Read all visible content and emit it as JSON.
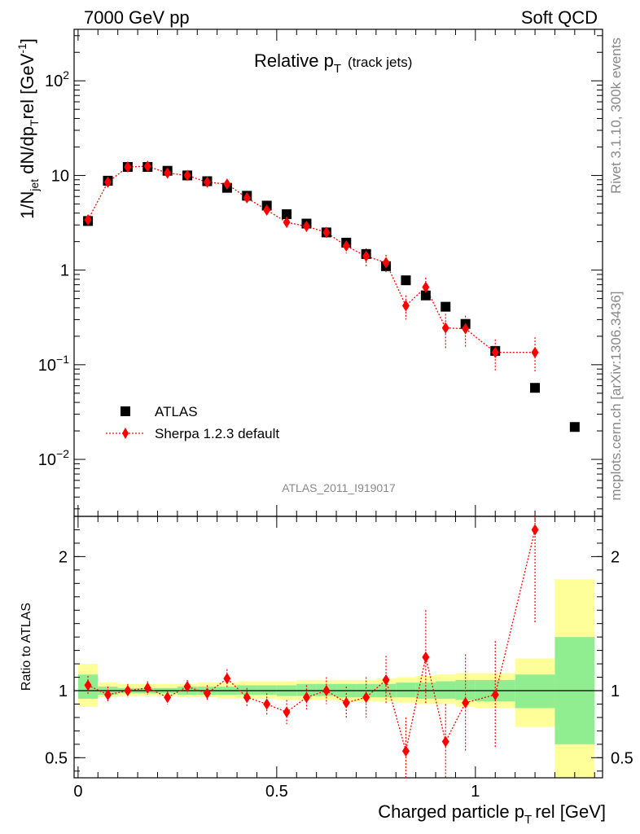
{
  "header": {
    "left": "7000 GeV pp",
    "right": "Soft QCD"
  },
  "side": {
    "rivet": "Rivet 3.1.10,  300k events",
    "mcplots": "mcplots.cern.ch [arXiv:1306.3436]"
  },
  "chart_data": [
    {
      "type": "scatter",
      "title": "Relative p",
      "title_sub": "T",
      "title_extra": "(track jets)",
      "analysis_label": "ATLAS_2011_I919017",
      "ylabel": "1/N",
      "ylabel_parts": [
        "1/N",
        "jet",
        " dN/dp",
        "T",
        "rel [GeV",
        "-1",
        "]"
      ],
      "y_scale": "log",
      "ylim": [
        0.0025,
        350
      ],
      "xlim": [
        -0.01,
        1.32
      ],
      "y_ticks": [
        {
          "value": 0.01,
          "base": "10",
          "exp": "−2"
        },
        {
          "value": 0.1,
          "base": "10",
          "exp": "−1"
        },
        {
          "value": 1,
          "base": "1",
          "exp": ""
        },
        {
          "value": 10,
          "base": "10",
          "exp": ""
        },
        {
          "value": 100,
          "base": "10",
          "exp": "2"
        }
      ],
      "legend_position": "middle-left",
      "series": [
        {
          "name": "ATLAS",
          "color": "#000000",
          "marker": "square",
          "x": [
            0.025,
            0.075,
            0.125,
            0.175,
            0.225,
            0.275,
            0.325,
            0.375,
            0.425,
            0.475,
            0.525,
            0.575,
            0.625,
            0.675,
            0.725,
            0.775,
            0.825,
            0.875,
            0.925,
            0.975,
            1.05,
            1.15,
            1.25
          ],
          "values": [
            3.3,
            8.8,
            12.3,
            12.3,
            11.2,
            10.0,
            8.7,
            7.4,
            6.1,
            4.8,
            3.9,
            3.1,
            2.5,
            1.95,
            1.48,
            1.1,
            0.78,
            0.54,
            0.41,
            0.27,
            0.14,
            0.057,
            0.022
          ]
        },
        {
          "name": "Sherpa 1.2.3 default",
          "color": "#ff0000",
          "marker": "diamond",
          "x": [
            0.025,
            0.075,
            0.125,
            0.175,
            0.225,
            0.275,
            0.325,
            0.375,
            0.425,
            0.475,
            0.525,
            0.575,
            0.625,
            0.675,
            0.725,
            0.775,
            0.825,
            0.875,
            0.925,
            0.975,
            1.05,
            1.15
          ],
          "values": [
            3.4,
            8.5,
            12.3,
            12.5,
            10.6,
            10.0,
            8.5,
            8.1,
            5.8,
            4.3,
            3.2,
            2.9,
            2.5,
            1.8,
            1.4,
            1.2,
            0.42,
            0.66,
            0.245,
            0.24,
            0.135,
            0.135
          ],
          "err_lo": [
            0.25,
            0.5,
            0.6,
            0.6,
            0.5,
            0.5,
            0.5,
            0.6,
            0.5,
            0.4,
            0.4,
            0.35,
            0.3,
            0.3,
            0.3,
            0.25,
            0.12,
            0.17,
            0.1,
            0.09,
            0.05,
            0.05
          ],
          "err_hi": [
            0.25,
            0.5,
            0.6,
            0.6,
            0.5,
            0.5,
            0.5,
            0.6,
            0.5,
            0.4,
            0.4,
            0.35,
            0.3,
            0.3,
            0.3,
            0.25,
            0.12,
            0.17,
            0.1,
            0.09,
            0.05,
            0.06
          ]
        }
      ]
    },
    {
      "type": "scatter",
      "ylabel": "Ratio to ATLAS",
      "xlabel": "Charged particle p",
      "xlabel_sub": "T",
      "xlabel_tail": "rel [GeV]",
      "y_scale": "linear",
      "ylim": [
        0.35,
        2.3
      ],
      "xlim": [
        -0.01,
        1.32
      ],
      "x_ticks": [
        "0",
        "0.5",
        "1"
      ],
      "y_ticks": [
        "0.5",
        "1",
        "2"
      ],
      "reference_line": 1,
      "bands": {
        "x_low": [
          0.0,
          0.05,
          0.1,
          0.15,
          0.2,
          0.25,
          0.3,
          0.35,
          0.4,
          0.45,
          0.5,
          0.55,
          0.6,
          0.65,
          0.7,
          0.75,
          0.8,
          0.85,
          0.9,
          0.95,
          1.0,
          1.1,
          1.2
        ],
        "x_high": [
          0.05,
          0.1,
          0.15,
          0.2,
          0.25,
          0.3,
          0.35,
          0.4,
          0.45,
          0.5,
          0.55,
          0.6,
          0.65,
          0.7,
          0.75,
          0.8,
          0.85,
          0.9,
          0.95,
          1.0,
          1.1,
          1.2,
          1.3
        ],
        "inner_lo": [
          0.94,
          0.97,
          0.98,
          0.98,
          0.98,
          0.97,
          0.97,
          0.97,
          0.97,
          0.97,
          0.96,
          0.96,
          0.96,
          0.95,
          0.95,
          0.95,
          0.95,
          0.94,
          0.94,
          0.93,
          0.92,
          0.87,
          0.6
        ],
        "inner_hi": [
          1.12,
          1.03,
          1.02,
          1.02,
          1.02,
          1.03,
          1.03,
          1.03,
          1.04,
          1.04,
          1.04,
          1.05,
          1.05,
          1.05,
          1.05,
          1.05,
          1.06,
          1.06,
          1.07,
          1.08,
          1.08,
          1.12,
          1.4
        ],
        "outer_lo": [
          0.88,
          0.95,
          0.96,
          0.96,
          0.96,
          0.95,
          0.95,
          0.94,
          0.94,
          0.94,
          0.93,
          0.93,
          0.93,
          0.92,
          0.92,
          0.92,
          0.91,
          0.9,
          0.9,
          0.88,
          0.87,
          0.73,
          0.35
        ],
        "outer_hi": [
          1.2,
          1.06,
          1.05,
          1.05,
          1.05,
          1.05,
          1.06,
          1.06,
          1.07,
          1.07,
          1.07,
          1.08,
          1.08,
          1.08,
          1.08,
          1.09,
          1.1,
          1.11,
          1.12,
          1.13,
          1.13,
          1.24,
          1.83
        ],
        "inner_color": "#90ee90",
        "outer_color": "#ffff99"
      },
      "series": [
        {
          "name": "Sherpa 1.2.3 default",
          "color": "#ff0000",
          "x": [
            0.025,
            0.075,
            0.125,
            0.175,
            0.225,
            0.275,
            0.325,
            0.375,
            0.425,
            0.475,
            0.525,
            0.575,
            0.625,
            0.675,
            0.725,
            0.775,
            0.825,
            0.875,
            0.925,
            0.975,
            1.05,
            1.15
          ],
          "values": [
            1.04,
            0.97,
            1.0,
            1.02,
            0.95,
            1.03,
            0.98,
            1.09,
            0.95,
            0.9,
            0.84,
            0.95,
            1.0,
            0.91,
            0.95,
            1.08,
            0.55,
            1.25,
            0.62,
            0.91,
            0.97,
            2.2
          ],
          "err_lo": [
            0.07,
            0.06,
            0.05,
            0.05,
            0.05,
            0.05,
            0.06,
            0.07,
            0.07,
            0.08,
            0.09,
            0.09,
            0.1,
            0.12,
            0.15,
            0.18,
            0.25,
            0.35,
            0.28,
            0.36,
            0.4,
            0.7
          ],
          "err_hi": [
            0.07,
            0.06,
            0.05,
            0.05,
            0.05,
            0.05,
            0.06,
            0.07,
            0.07,
            0.08,
            0.09,
            0.09,
            0.1,
            0.12,
            0.15,
            0.18,
            0.25,
            0.35,
            0.28,
            0.36,
            0.4,
            0.7
          ]
        }
      ]
    }
  ]
}
